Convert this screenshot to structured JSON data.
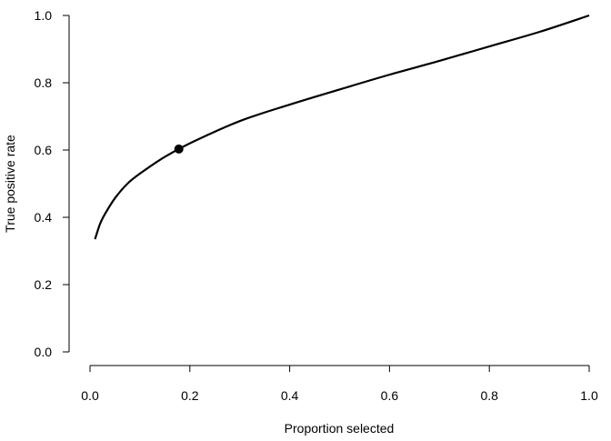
{
  "chart_data": {
    "type": "line",
    "title": "",
    "xlabel": "Proportion selected",
    "ylabel": "True positive rate",
    "xlim": [
      0,
      1
    ],
    "ylim": [
      0,
      1
    ],
    "xticks": [
      "0.0",
      "0.2",
      "0.4",
      "0.6",
      "0.8",
      "1.0"
    ],
    "yticks": [
      "0.0",
      "0.2",
      "0.4",
      "0.6",
      "0.8",
      "1.0"
    ],
    "grid": false,
    "series": [
      {
        "x": [
          0.01,
          0.02,
          0.03,
          0.05,
          0.075,
          0.1,
          0.15,
          0.2,
          0.3,
          0.4,
          0.5,
          0.6,
          0.7,
          0.8,
          0.9,
          1.0
        ],
        "y": [
          0.335,
          0.38,
          0.41,
          0.457,
          0.5,
          0.53,
          0.58,
          0.62,
          0.686,
          0.735,
          0.78,
          0.824,
          0.865,
          0.908,
          0.951,
          1.0
        ]
      }
    ],
    "highlight_point": {
      "x": 0.178,
      "y": 0.603
    },
    "line_color": "#000000"
  }
}
